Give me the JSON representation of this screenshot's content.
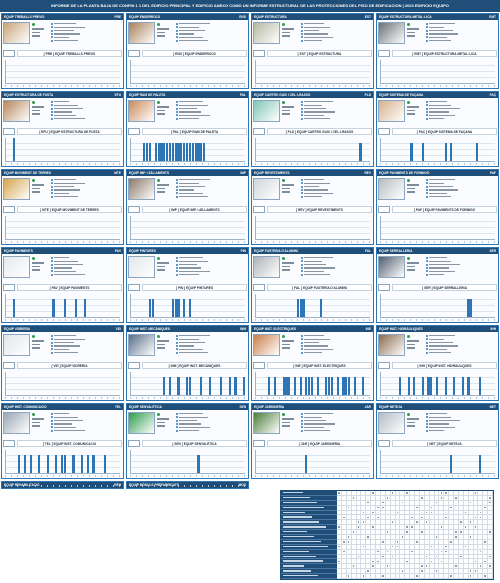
{
  "header": {
    "title": "INFORME DE LA PLANTA BAJA DE CONFIN 1 1 DEL EDIFICIO PRINCIPAL Y EDIFICIO ANEXO COMO UN INFORME ESTRUCTURAL DE LAS PROTECCIONES DEL PISO DE EDIFICACION | 2023 EDIFICIO EQUIPO"
  },
  "colors": {
    "header": "#1f4e79",
    "accent": "#2e75b6",
    "ok": "#2e9d4c"
  },
  "panels": [
    {
      "name": "EQUIP TREBALLS PREVIS",
      "code": "PRE",
      "chart_title": "[ PRE ] EQUIP TREBALLS PREVIS",
      "thumb": "#c9a57a",
      "bars": [
        1,
        1,
        1,
        1,
        1,
        1,
        1,
        1,
        1,
        1,
        1,
        1,
        1,
        1,
        1,
        1,
        1,
        1,
        1,
        1,
        1,
        1,
        1,
        1,
        1,
        1,
        1,
        1,
        1,
        1,
        1,
        1,
        1,
        1,
        1,
        1,
        1,
        1,
        1,
        1
      ]
    },
    {
      "name": "EQUIP ENDERROCS",
      "code": "END",
      "chart_title": "[ END ] EQUIP ENDERROCS",
      "thumb": "#a9805a",
      "bars": [
        1,
        1,
        1,
        1,
        1,
        1,
        1,
        1,
        1,
        1,
        1,
        1,
        1,
        1,
        1,
        1,
        1,
        1,
        1,
        1,
        1,
        1,
        1,
        1,
        1,
        1,
        1,
        1,
        1,
        1,
        1,
        1,
        1,
        1,
        1,
        1,
        1,
        1,
        1,
        1
      ]
    },
    {
      "name": "EQUIP ESTRUCTURA",
      "code": "EST",
      "chart_title": "[ EST ] EQUIP ESTRUCTURA",
      "thumb": "#b4b9a0",
      "bars": [
        1,
        1,
        1,
        1,
        1,
        1,
        1,
        1,
        1,
        1,
        1,
        1,
        1,
        1,
        1,
        1,
        1,
        1,
        1,
        1,
        1,
        1,
        1,
        1,
        1,
        1,
        1,
        1,
        1,
        1,
        1,
        1,
        1,
        1,
        1,
        1,
        1,
        1,
        1,
        1
      ]
    },
    {
      "name": "EQUIP ESTRUCTURA METAL·LICA",
      "code": "EMT",
      "chart_title": "[ EMT ] EQUIP ESTRUCTURA METAL·LICA",
      "thumb": "#6b6f75",
      "bars": [
        1,
        1,
        1,
        1,
        1,
        1,
        1,
        1,
        1,
        1,
        1,
        1,
        1,
        1,
        1,
        1,
        1,
        1,
        1,
        1,
        1,
        1,
        1,
        1,
        1,
        1,
        1,
        1,
        1,
        1,
        1,
        1,
        1,
        1,
        1,
        1,
        1,
        1,
        1,
        1
      ]
    },
    {
      "name": "EQUIP ESTRUCTURA DE FUSTA",
      "code": "EFU",
      "chart_title": "[ EFU ] EQUIP ESTRUCTURA DE FUSTA",
      "thumb": "#b7865a",
      "bars": [
        0,
        0,
        0,
        0,
        0,
        0,
        0,
        0,
        0,
        0,
        0,
        0,
        0,
        0,
        0,
        0,
        0,
        0,
        0,
        0,
        0,
        0,
        0,
        0,
        0,
        0,
        0,
        0,
        0,
        0,
        0,
        0,
        0,
        0,
        0,
        0,
        0,
        0,
        0,
        0
      ],
      "bar_levels": [
        0,
        0,
        5,
        0,
        0,
        0,
        0,
        0,
        0,
        0,
        0,
        0,
        0,
        0,
        0,
        0,
        0,
        0,
        0,
        0,
        0,
        0,
        0,
        0,
        0,
        0,
        0,
        0,
        0,
        0,
        0,
        0,
        0,
        0,
        0,
        0,
        0,
        0,
        0,
        0
      ]
    },
    {
      "name": "EQUIP RAM DE PALETA",
      "code": "PAL",
      "chart_title": "[ PAL ] EQUIP RAM DE PALETA",
      "thumb": "#c98a5a",
      "bars": [],
      "bar_levels": [
        0,
        0,
        0,
        0,
        4,
        4,
        4,
        0,
        4,
        4,
        4,
        4,
        4,
        4,
        4,
        4,
        4,
        4,
        4,
        4,
        4,
        4,
        4,
        4,
        4,
        4,
        0,
        0,
        0,
        0,
        0,
        0,
        0,
        0,
        0,
        0,
        0,
        0,
        0,
        0
      ]
    },
    {
      "name": "EQUIP CARTRO GUIX I CEL·LRASOS",
      "code": "PLD",
      "chart_title": "[ PLD ] EQUIP CARTRO GUIX I CEL·LRASOS",
      "thumb": "#7fc6b6",
      "bars": [],
      "bar_levels": [
        0,
        0,
        0,
        0,
        0,
        0,
        0,
        0,
        0,
        0,
        0,
        0,
        0,
        0,
        0,
        0,
        0,
        0,
        0,
        0,
        0,
        0,
        0,
        0,
        0,
        0,
        0,
        0,
        0,
        0,
        0,
        0,
        0,
        0,
        0,
        0,
        4,
        0,
        0,
        0
      ]
    },
    {
      "name": "EQUIP SISTEMA DE FAÇANA",
      "code": "FAÇ",
      "chart_title": "[ FAÇ ] EQUIP SISTEMA DE FAÇANA",
      "thumb": "#d4b189",
      "bars": [],
      "bar_levels": [
        0,
        0,
        0,
        0,
        0,
        0,
        0,
        0,
        0,
        0,
        4,
        0,
        0,
        0,
        4,
        0,
        0,
        0,
        0,
        0,
        0,
        0,
        4,
        0,
        4,
        0,
        0,
        0,
        0,
        0,
        0,
        0,
        0,
        4,
        0,
        0,
        0,
        0,
        0,
        0
      ]
    },
    {
      "name": "EQUIP MOVIMENT DE TERRES",
      "code": "MTE",
      "chart_title": "[ MTE ] EQUIP MOVIMENT DE TERRES",
      "thumb": "#d2a54a",
      "bars": [],
      "bar_levels": [
        0,
        0,
        0,
        0,
        0,
        0,
        0,
        0,
        0,
        0,
        0,
        0,
        0,
        0,
        0,
        0,
        0,
        0,
        0,
        0,
        0,
        0,
        0,
        0,
        0,
        0,
        0,
        0,
        0,
        0,
        0,
        0,
        0,
        0,
        0,
        0,
        0,
        0,
        0,
        0
      ]
    },
    {
      "name": "EQUIP IMP. I AÏLLAMENTS",
      "code": "IMP",
      "chart_title": "[ IMP ] EQUIP IMP. I AÏLLAMENTS",
      "thumb": "#8a7868",
      "bars": [],
      "bar_levels": [
        0,
        0,
        0,
        0,
        0,
        0,
        0,
        0,
        0,
        0,
        0,
        0,
        0,
        0,
        0,
        0,
        0,
        0,
        0,
        0,
        0,
        0,
        0,
        0,
        0,
        0,
        0,
        0,
        0,
        0,
        0,
        0,
        0,
        0,
        0,
        0,
        0,
        0,
        0,
        0
      ]
    },
    {
      "name": "EQUIP REVESTIMENTS",
      "code": "REV",
      "chart_title": "[ REV ] EQUIP REVESTIMENTS",
      "thumb": "#cfd6dc",
      "bars": [],
      "bar_levels": [
        0,
        0,
        0,
        0,
        0,
        0,
        0,
        0,
        0,
        0,
        0,
        0,
        0,
        0,
        0,
        0,
        0,
        0,
        0,
        0,
        0,
        0,
        0,
        0,
        0,
        0,
        0,
        0,
        0,
        0,
        0,
        0,
        0,
        0,
        0,
        0,
        0,
        0,
        0,
        0
      ]
    },
    {
      "name": "EQUIP PAVIMENTS DE FORMIGÓ",
      "code": "PAF",
      "chart_title": "[ PAF ] EQUIP PAVIMENTS DE FORMIGÓ",
      "thumb": "#b8bcbf",
      "bars": [],
      "bar_levels": [
        0,
        0,
        0,
        0,
        0,
        0,
        0,
        0,
        0,
        0,
        0,
        0,
        0,
        0,
        0,
        0,
        0,
        0,
        0,
        0,
        0,
        0,
        0,
        0,
        0,
        0,
        0,
        0,
        0,
        0,
        0,
        0,
        0,
        0,
        0,
        0,
        0,
        0,
        0,
        0
      ]
    },
    {
      "name": "EQUIP PAVIMENTS",
      "code": "PAV",
      "chart_title": "[ PAV ] EQUIP PAVIMENTS",
      "thumb": "#e6e9ec",
      "bars": [],
      "bar_levels": [
        0,
        0,
        4,
        0,
        0,
        0,
        0,
        0,
        0,
        0,
        0,
        0,
        0,
        0,
        0,
        0,
        4,
        0,
        0,
        0,
        4,
        0,
        0,
        0,
        4,
        0,
        0,
        4,
        0,
        0,
        0,
        0,
        0,
        0,
        0,
        0,
        0,
        0,
        0,
        0
      ]
    },
    {
      "name": "EQUIP PINTURES",
      "code": "PIN",
      "chart_title": "[ PIN ] EQUIP PINTURES",
      "thumb": "#e3e6ea",
      "bars": [],
      "bar_levels": [
        0,
        0,
        0,
        0,
        0,
        0,
        4,
        4,
        0,
        0,
        0,
        0,
        0,
        0,
        4,
        4,
        4,
        0,
        4,
        0,
        4,
        0,
        0,
        0,
        0,
        0,
        0,
        0,
        0,
        0,
        0,
        0,
        0,
        0,
        0,
        0,
        0,
        0,
        0,
        0
      ]
    },
    {
      "name": "EQUIP FUSTERIA D'ALUMINI",
      "code": "FAL",
      "chart_title": "[ FAL ] EQUIP FUSTERIA D'ALUMINI",
      "thumb": "#aeb4ba",
      "bars": [],
      "bar_levels": [
        0,
        0,
        0,
        0,
        0,
        0,
        0,
        0,
        0,
        0,
        0,
        0,
        0,
        0,
        4,
        4,
        4,
        0,
        0,
        0,
        0,
        0,
        4,
        0,
        0,
        0,
        0,
        0,
        0,
        0,
        0,
        0,
        0,
        0,
        0,
        0,
        0,
        0,
        0,
        0
      ]
    },
    {
      "name": "EQUIP SERRALLERIA",
      "code": "SER",
      "chart_title": "[ SER ] EQUIP SERRALLERIA",
      "thumb": "#4f5e6f",
      "bars": [],
      "bar_levels": [
        0,
        0,
        0,
        0,
        0,
        0,
        0,
        0,
        0,
        0,
        0,
        0,
        0,
        0,
        0,
        0,
        0,
        0,
        0,
        0,
        0,
        0,
        0,
        0,
        0,
        0,
        0,
        0,
        0,
        0,
        4,
        4,
        0,
        0,
        0,
        0,
        0,
        0,
        0,
        0
      ]
    },
    {
      "name": "EQUIP VIDRERIA",
      "code": "VID",
      "chart_title": "[ VID ] EQUIP VIDRERIA",
      "thumb": "#dfe6ea",
      "bars": [],
      "bar_levels": [
        0,
        0,
        0,
        0,
        0,
        0,
        0,
        0,
        0,
        0,
        0,
        0,
        0,
        0,
        0,
        0,
        0,
        0,
        0,
        0,
        0,
        0,
        0,
        0,
        0,
        0,
        0,
        0,
        0,
        0,
        0,
        0,
        0,
        0,
        0,
        0,
        0,
        0,
        0,
        0
      ]
    },
    {
      "name": "EQUIP INST. MECÀNIQUES",
      "code": "INM",
      "chart_title": "[ INM ] EQUIP INST. MECÀNIQUES",
      "thumb": "#5a6e86",
      "bars": [],
      "bar_levels": [
        0,
        0,
        0,
        0,
        0,
        0,
        0,
        0,
        0,
        0,
        0,
        4,
        0,
        4,
        0,
        0,
        4,
        0,
        0,
        4,
        4,
        0,
        0,
        0,
        4,
        0,
        0,
        4,
        0,
        0,
        0,
        4,
        0,
        0,
        4,
        0,
        4,
        0,
        0,
        4
      ]
    },
    {
      "name": "EQUIP INST. ELÈCTRIQUES",
      "code": "INE",
      "chart_title": "[ INE ] EQUIP INST. ELÈCTRIQUES",
      "thumb": "#c97f4a",
      "bars": [],
      "bar_levels": [
        0,
        0,
        0,
        0,
        4,
        0,
        4,
        0,
        0,
        4,
        4,
        4,
        0,
        4,
        0,
        4,
        0,
        4,
        4,
        4,
        0,
        4,
        0,
        0,
        4,
        4,
        4,
        0,
        4,
        0,
        4,
        4,
        4,
        0,
        4,
        0,
        0,
        4,
        0,
        0
      ]
    },
    {
      "name": "EQUIP INST. HIDRÀULIQUES",
      "code": "INH",
      "chart_title": "[ INH ] EQUIP INST. HIDRÀULIQUES",
      "thumb": "#8a6a4e",
      "bars": [],
      "bar_levels": [
        0,
        0,
        0,
        0,
        0,
        0,
        4,
        0,
        0,
        4,
        0,
        4,
        0,
        0,
        4,
        0,
        4,
        4,
        0,
        4,
        0,
        0,
        4,
        0,
        0,
        4,
        0,
        0,
        4,
        0,
        4,
        0,
        0,
        0,
        4,
        0,
        0,
        0,
        0,
        0
      ]
    },
    {
      "name": "EQUIP INST. COMUNICACIO",
      "code": "TEL",
      "chart_title": "[ TEL ] EQUIP INST. COMUNICACIO",
      "thumb": "#9aa7b5",
      "bars": [],
      "bar_levels": [
        0,
        0,
        0,
        0,
        4,
        0,
        4,
        0,
        4,
        0,
        0,
        4,
        0,
        0,
        4,
        0,
        0,
        4,
        0,
        4,
        4,
        0,
        0,
        4,
        0,
        0,
        4,
        0,
        4,
        0,
        4,
        0,
        0,
        0,
        4,
        0,
        0,
        0,
        0,
        0
      ]
    },
    {
      "name": "EQUIP SENYALÈTICA",
      "code": "SEN",
      "chart_title": "[ SEN ] EQUIP SENYALÈTICA",
      "thumb": "#2e9d4c",
      "bars": [],
      "bar_levels": [
        0,
        0,
        0,
        0,
        0,
        0,
        0,
        0,
        0,
        0,
        0,
        0,
        0,
        0,
        0,
        0,
        0,
        0,
        0,
        0,
        0,
        0,
        0,
        4,
        0,
        0,
        0,
        0,
        0,
        0,
        0,
        0,
        0,
        0,
        0,
        0,
        0,
        0,
        0,
        0
      ]
    },
    {
      "name": "EQUIP JARDINERIA",
      "code": "JAR",
      "chart_title": "[ JAR ] EQUIP JARDINERIA",
      "thumb": "#4e7d3a",
      "bars": [],
      "bar_levels": [
        0,
        0,
        0,
        0,
        0,
        0,
        0,
        0,
        0,
        0,
        0,
        0,
        0,
        0,
        0,
        0,
        0,
        4,
        0,
        0,
        0,
        0,
        0,
        0,
        0,
        0,
        0,
        0,
        0,
        0,
        0,
        0,
        0,
        0,
        0,
        0,
        0,
        0,
        0,
        0
      ]
    },
    {
      "name": "EQUIP NETEJA",
      "code": "NET",
      "chart_title": "[ NET ] EQUIP NETEJA",
      "thumb": "#b3bcc5",
      "bars": [],
      "bar_levels": [
        0,
        0,
        0,
        0,
        0,
        0,
        0,
        0,
        0,
        0,
        0,
        0,
        0,
        0,
        0,
        0,
        0,
        0,
        0,
        0,
        0,
        0,
        0,
        0,
        4,
        0,
        0,
        0,
        0,
        0,
        0,
        0,
        0,
        0,
        4,
        0,
        0,
        0,
        0,
        0
      ]
    },
    {
      "name": "EQUIP REHABILITACIÓ",
      "code": "REH",
      "chart_title": "[ REH ] EQUIP REHABILITACIÓ",
      "thumb": "#c4a16f",
      "bars": [],
      "bar_levels": [
        0,
        0,
        0,
        0,
        0,
        0,
        0,
        0,
        0,
        0,
        0,
        0,
        0,
        0,
        0,
        0,
        0,
        0,
        0,
        0,
        0,
        0,
        0,
        0,
        0,
        0,
        0,
        0,
        0,
        0,
        0,
        0,
        0,
        0,
        0,
        0,
        0,
        0,
        0,
        0
      ]
    },
    {
      "name": "EQUIP MÒDULS PREFABRICATS",
      "code": "MOD",
      "chart_title": "[ MOD ] EQUIP MÒDULS PREFABRICATS",
      "thumb": "#6f8a5c",
      "bars": [],
      "bar_levels": [
        0,
        0,
        0,
        0,
        0,
        0,
        0,
        0,
        0,
        0,
        0,
        0,
        0,
        0,
        0,
        0,
        0,
        0,
        0,
        0,
        0,
        0,
        0,
        0,
        0,
        0,
        0,
        0,
        0,
        0,
        0,
        0,
        0,
        0,
        0,
        0,
        0,
        0,
        0,
        0
      ]
    }
  ]
}
